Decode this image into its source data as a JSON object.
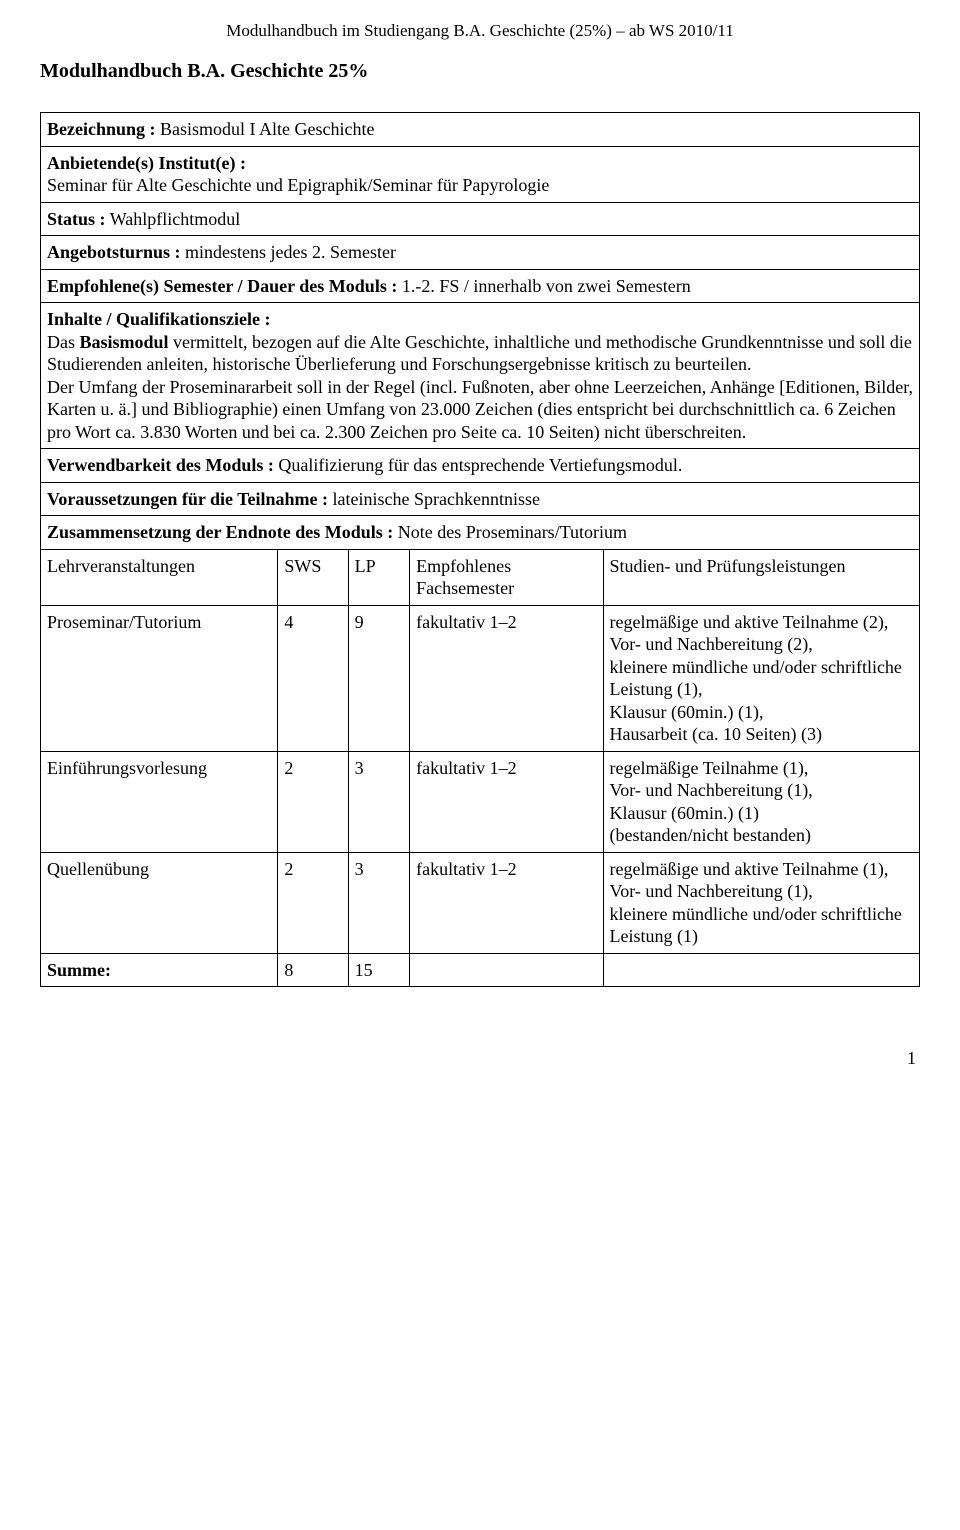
{
  "header": "Modulhandbuch im Studiengang B.A. Geschichte (25%) – ab WS 2010/11",
  "title": "Modulhandbuch B.A. Geschichte 25%",
  "row_bezeichnung_label": "Bezeichnung :",
  "row_bezeichnung_value": " Basismodul I Alte Geschichte",
  "row_institut_label": "Anbietende(s) Institut(e)  :",
  "row_institut_value": "Seminar für Alte Geschichte und Epigraphik/Seminar für Papyrologie",
  "row_status_label": "Status :",
  "row_status_value": " Wahlpflichtmodul",
  "row_turnus_label": "Angebotsturnus :",
  "row_turnus_value": " mindestens jedes 2. Semester",
  "row_semester_label": "Empfohlene(s) Semester / Dauer des Moduls :",
  "row_semester_value": " 1.-2. FS / innerhalb von zwei Semestern",
  "row_inhalte_label": "Inhalte / Qualifikationsziele :",
  "row_inhalte_html": "Das <b>Basismodul</b> vermittelt, bezogen auf die Alte Geschichte, inhaltliche und methodische Grundkenntnisse und soll die Studierenden anleiten, historische Überlieferung und Forschungsergebnisse kritisch zu beurteilen.<br>Der Umfang der Proseminararbeit soll in der Regel (incl. Fußnoten, aber ohne Leerzeichen, Anhänge [Editionen, Bilder, Karten u. ä.] und Bibliographie) einen Umfang von 23.000 Zeichen (dies entspricht bei durchschnittlich ca. 6 Zeichen pro Wort ca. 3.830 Worten und bei ca. 2.300 Zeichen pro Seite ca. 10 Seiten) nicht überschreiten.",
  "row_verwend_label": "Verwendbarkeit des Moduls :",
  "row_verwend_value": " Qualifizierung für das entsprechende Vertiefungsmodul.",
  "row_voraus_label": "Voraussetzungen für die Teilnahme :",
  "row_voraus_value": " lateinische Sprachkenntnisse",
  "row_endnote_label": "Zusammensetzung der Endnote des Moduls :",
  "row_endnote_value": " Note des Proseminars/Tutorium",
  "tbl": {
    "head": [
      "Lehrveranstaltungen",
      "SWS",
      "LP",
      "Empfohlenes Fachsemester",
      "Studien- und Prüfungsleistungen"
    ],
    "rows": [
      [
        "Proseminar/Tutorium",
        "4",
        "9",
        "fakultativ 1–2",
        "regelmäßige und aktive Teilnahme (2),\nVor- und Nachbereitung (2),\nkleinere mündliche und/oder schriftliche Leistung (1),\nKlausur (60min.) (1),\nHausarbeit  (ca. 10 Seiten) (3)"
      ],
      [
        "Einführungsvorlesung",
        "2",
        "3",
        "fakultativ 1–2",
        "regelmäßige Teilnahme (1),\nVor- und Nachbereitung (1),\nKlausur (60min.) (1)\n(bestanden/nicht bestanden)"
      ],
      [
        "Quellenübung",
        "2",
        "3",
        "fakultativ 1–2",
        "regelmäßige und aktive Teilnahme (1),\nVor- und Nachbereitung (1),\nkleinere mündliche und/oder schriftliche Leistung (1)"
      ]
    ],
    "sum_label": "Summe:",
    "sum_sws": "8",
    "sum_lp": "15"
  },
  "page_number": "1",
  "col_widths": [
    "27%",
    "8%",
    "7%",
    "22%",
    "36%"
  ]
}
